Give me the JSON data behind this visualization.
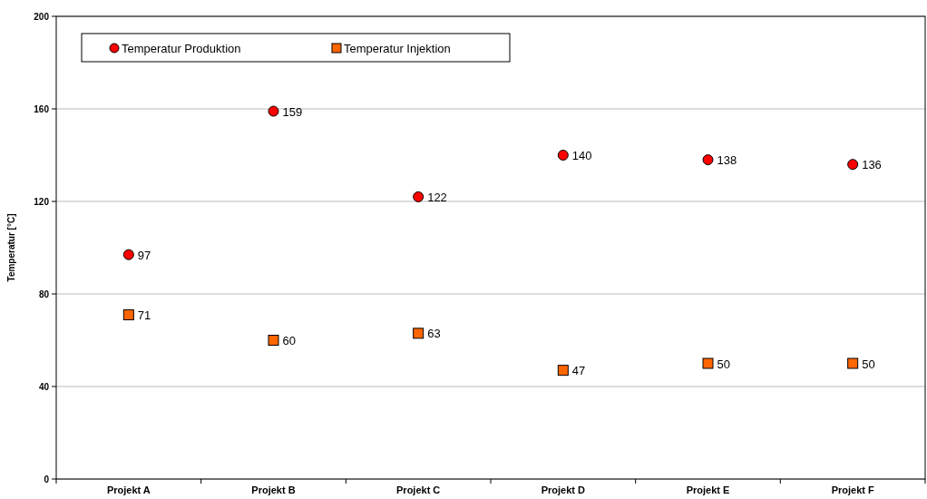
{
  "chart_data": {
    "type": "scatter",
    "ylabel": "Temperatur [°C]",
    "categories": [
      "Projekt A",
      "Projekt B",
      "Projekt C",
      "Projekt D",
      "Projekt E",
      "Projekt F"
    ],
    "series": [
      {
        "name": "Temperatur Produktion",
        "color": "#ff0000",
        "marker": "circle",
        "values": [
          97,
          159,
          122,
          140,
          138,
          136
        ]
      },
      {
        "name": "Temperatur Injektion",
        "color": "#ff6600",
        "marker": "square",
        "values": [
          71,
          60,
          63,
          47,
          50,
          50
        ]
      }
    ],
    "ylim": [
      0,
      200
    ],
    "yticks": [
      0,
      40,
      80,
      120,
      160,
      200
    ],
    "grid": "y",
    "legend": "top left",
    "data_labels": true
  }
}
